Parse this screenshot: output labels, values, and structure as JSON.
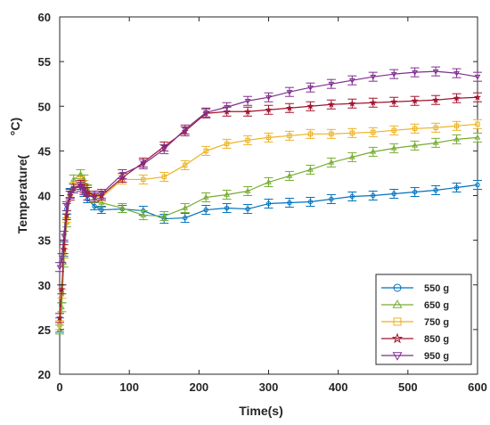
{
  "chart_data": {
    "type": "line",
    "xlabel": "Time(s)",
    "ylabel_main": "Temperature(",
    "ylabel_unit": "°C)",
    "xlim": [
      0,
      600
    ],
    "ylim": [
      20,
      60
    ],
    "xticks": [
      "0",
      "100",
      "200",
      "300",
      "400",
      "500",
      "600"
    ],
    "yticks": [
      "20",
      "25",
      "30",
      "35",
      "40",
      "45",
      "50",
      "55",
      "60"
    ],
    "grid": false,
    "legend_position": "bottom-right",
    "series": [
      {
        "name": "550 g",
        "color": "#0072BD",
        "marker": "circle",
        "x": [
          0,
          3,
          6,
          10,
          15,
          20,
          30,
          35,
          40,
          50,
          60,
          90,
          120,
          150,
          180,
          210,
          240,
          270,
          300,
          330,
          360,
          390,
          420,
          450,
          480,
          510,
          540,
          570,
          600
        ],
        "y": [
          25.5,
          29.0,
          34.0,
          38.5,
          40.3,
          40.8,
          41.0,
          40.3,
          39.6,
          38.8,
          38.4,
          38.5,
          38.3,
          37.4,
          37.5,
          38.4,
          38.6,
          38.5,
          39.1,
          39.2,
          39.3,
          39.6,
          39.9,
          40.0,
          40.2,
          40.4,
          40.6,
          40.9,
          41.2
        ],
        "errors": [
          0.8,
          1.0,
          0.8,
          0.6,
          0.5,
          0.5,
          0.5,
          0.4,
          0.4,
          0.4,
          0.4,
          0.4,
          0.5,
          0.5,
          0.5,
          0.5,
          0.5,
          0.5,
          0.5,
          0.5,
          0.5,
          0.5,
          0.5,
          0.5,
          0.5,
          0.5,
          0.5,
          0.5,
          0.5
        ]
      },
      {
        "name": "650 g",
        "color": "#77AC30",
        "marker": "triangle-up",
        "x": [
          0,
          3,
          6,
          10,
          15,
          20,
          30,
          35,
          40,
          50,
          60,
          90,
          120,
          150,
          180,
          210,
          240,
          270,
          300,
          330,
          360,
          390,
          420,
          450,
          480,
          510,
          540,
          570,
          600
        ],
        "y": [
          25.0,
          27.5,
          32.5,
          37.0,
          40.2,
          41.8,
          42.4,
          41.8,
          40.7,
          39.7,
          39.2,
          38.6,
          37.8,
          37.7,
          38.6,
          39.8,
          40.1,
          40.5,
          41.5,
          42.2,
          42.9,
          43.7,
          44.3,
          44.9,
          45.3,
          45.6,
          45.9,
          46.3,
          46.5
        ]
      },
      {
        "name": "750 g",
        "color": "#EDB120",
        "marker": "square",
        "x": [
          0,
          3,
          6,
          10,
          15,
          20,
          30,
          35,
          40,
          50,
          60,
          90,
          120,
          150,
          180,
          210,
          240,
          270,
          300,
          330,
          360,
          390,
          420,
          450,
          480,
          510,
          540,
          570,
          600
        ],
        "y": [
          25.5,
          29.0,
          33.5,
          37.5,
          40.0,
          41.0,
          41.6,
          41.2,
          40.6,
          40.0,
          39.8,
          41.8,
          41.8,
          42.1,
          43.4,
          45.0,
          45.8,
          46.2,
          46.5,
          46.7,
          46.9,
          46.9,
          47.0,
          47.1,
          47.3,
          47.5,
          47.6,
          47.8,
          48.0
        ]
      },
      {
        "name": "850 g",
        "color": "#A2142F",
        "marker": "star",
        "x": [
          0,
          3,
          6,
          10,
          15,
          20,
          30,
          35,
          40,
          50,
          60,
          90,
          120,
          150,
          180,
          210,
          240,
          270,
          300,
          330,
          360,
          390,
          420,
          450,
          480,
          510,
          540,
          570,
          600
        ],
        "y": [
          26.3,
          29.5,
          34.0,
          37.8,
          40.0,
          40.8,
          41.2,
          40.8,
          40.4,
          40.0,
          40.0,
          42.0,
          43.7,
          45.5,
          47.2,
          49.2,
          49.4,
          49.4,
          49.6,
          49.8,
          50.0,
          50.2,
          50.3,
          50.4,
          50.5,
          50.6,
          50.7,
          50.9,
          51.0
        ]
      },
      {
        "name": "950 g",
        "color": "#7E2F8E",
        "marker": "triangle-down",
        "x": [
          0,
          3,
          6,
          10,
          15,
          20,
          30,
          35,
          40,
          50,
          60,
          90,
          120,
          150,
          180,
          210,
          240,
          270,
          300,
          330,
          360,
          390,
          420,
          450,
          480,
          510,
          540,
          570,
          600
        ],
        "y": [
          32.0,
          33.0,
          35.5,
          38.8,
          40.2,
          40.8,
          41.0,
          40.6,
          40.0,
          39.8,
          40.2,
          42.4,
          43.5,
          45.2,
          47.4,
          49.3,
          49.9,
          50.6,
          51.0,
          51.6,
          52.1,
          52.5,
          52.9,
          53.3,
          53.6,
          53.8,
          53.9,
          53.7,
          53.3
        ]
      }
    ]
  }
}
